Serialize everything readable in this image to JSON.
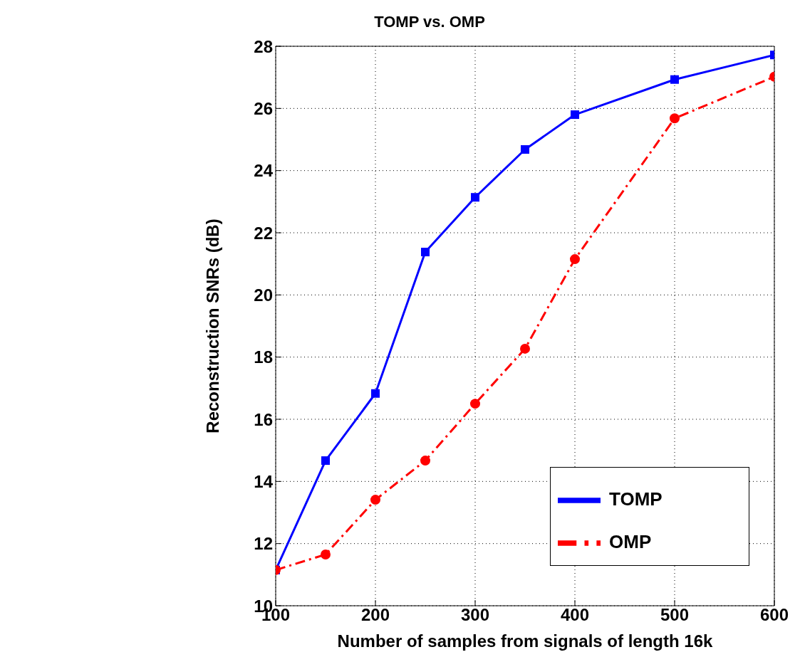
{
  "chart_data": {
    "type": "line",
    "title": "TOMP vs. OMP",
    "xlabel": "Number of samples from signals of length 16k",
    "ylabel": "Reconstruction SNRs (dB)",
    "x": [
      100,
      150,
      200,
      250,
      300,
      350,
      400,
      500,
      600
    ],
    "series": [
      {
        "name": "TOMP",
        "color": "#0000ff",
        "marker": "square",
        "line_style": "solid",
        "values": [
          11.15,
          14.67,
          16.83,
          21.38,
          23.14,
          24.68,
          25.8,
          26.93,
          27.72
        ]
      },
      {
        "name": "OMP",
        "color": "#ff0000",
        "marker": "circle",
        "line_style": "dashed",
        "values": [
          11.15,
          11.65,
          13.41,
          14.67,
          16.5,
          18.27,
          21.15,
          25.68,
          27.02
        ]
      }
    ],
    "xlim": [
      100,
      600
    ],
    "xticks": [
      100,
      200,
      300,
      400,
      500,
      600
    ],
    "ylim": [
      10,
      28
    ],
    "yticks": [
      10,
      12,
      14,
      16,
      18,
      20,
      22,
      24,
      26,
      28
    ],
    "grid": true,
    "legend": "bottom right"
  }
}
